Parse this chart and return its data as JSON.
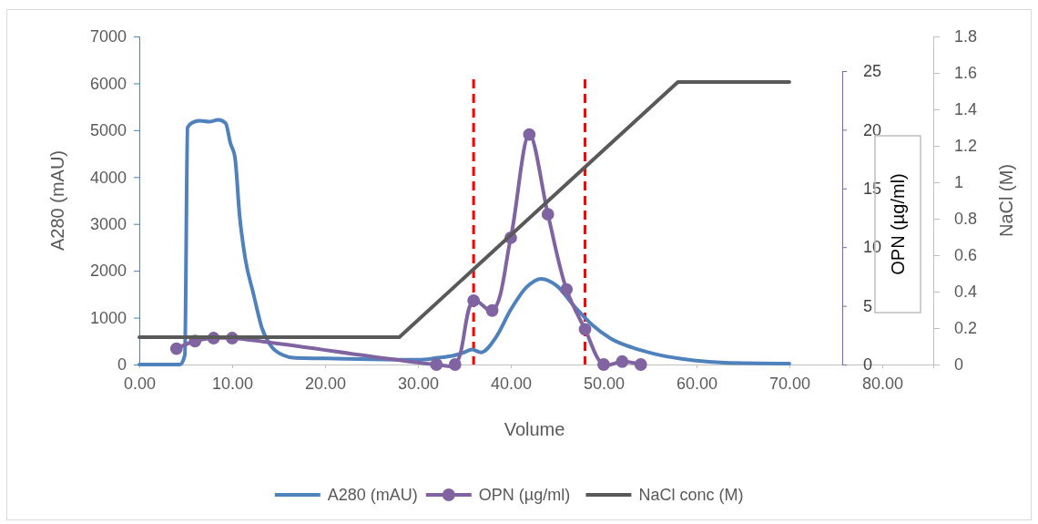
{
  "chart_data": {
    "type": "line",
    "xlabel": "Volume",
    "ylabel": "A280 (mAU)",
    "y2label": "NaCl (M)",
    "y3label": "OPN (µg/ml)",
    "xlim": [
      0,
      85.5
    ],
    "xticks": [
      {
        "value": 0,
        "label": "0.00"
      },
      {
        "value": 10,
        "label": "10.00"
      },
      {
        "value": 20,
        "label": "20.00"
      },
      {
        "value": 30,
        "label": "30.00"
      },
      {
        "value": 40,
        "label": "40.00"
      },
      {
        "value": 50,
        "label": "50.00"
      },
      {
        "value": 60,
        "label": "60.00"
      },
      {
        "value": 70,
        "label": "70.00"
      },
      {
        "value": 80,
        "label": "80.00"
      }
    ],
    "ylim": [
      0,
      7000
    ],
    "yticks": [
      0,
      1000,
      2000,
      3000,
      4000,
      5000,
      6000,
      7000
    ],
    "y2lim": [
      0,
      1.8
    ],
    "y2ticks": [
      0,
      0.2,
      0.4,
      0.6,
      0.8,
      1,
      1.2,
      1.4,
      1.6,
      1.8
    ],
    "y3lim": [
      0,
      25
    ],
    "y3ticks": [
      0,
      5,
      10,
      15,
      20,
      25
    ],
    "legend": "bottom",
    "series": [
      {
        "name": "A280 (mAU)",
        "color": "#4f81bd",
        "marker": "none",
        "x": [
          0,
          4.4,
          4.9,
          5.2,
          5.7,
          6.5,
          7.5,
          8.5,
          9.3,
          9.8,
          10.3,
          10.8,
          11.4,
          12.3,
          13.2,
          14.2,
          15.5,
          16.8,
          20,
          25,
          30,
          32,
          34,
          35,
          35.8,
          36.8,
          38.4,
          40,
          41.7,
          43.3,
          44.9,
          46.9,
          48.8,
          50.8,
          53.1,
          55.4,
          58.4,
          63,
          70
        ],
        "values": [
          0,
          0,
          200,
          5060,
          5160,
          5200,
          5180,
          5220,
          5150,
          4730,
          4420,
          3180,
          2270,
          1500,
          780,
          390,
          200,
          140,
          130,
          110,
          100,
          140,
          200,
          260,
          320,
          260,
          580,
          1170,
          1650,
          1830,
          1690,
          1230,
          840,
          550,
          360,
          230,
          120,
          40,
          20
        ]
      },
      {
        "name": "OPN (µg/ml)",
        "color": "#8064a2",
        "marker": "circle",
        "axis": "y3",
        "x": [
          4,
          6,
          8,
          10,
          32,
          34,
          36,
          38,
          40,
          42,
          44,
          46,
          48,
          50,
          52,
          54
        ],
        "values": [
          1.35,
          2.0,
          2.25,
          2.25,
          0,
          0,
          5.45,
          4.6,
          10.8,
          19.6,
          12.8,
          6.4,
          3.0,
          0,
          0.25,
          0
        ]
      },
      {
        "name": "NaCl conc (M)",
        "color": "#595959",
        "marker": "none",
        "axis": "y2",
        "x": [
          0,
          28,
          58,
          70
        ],
        "values": [
          0.15,
          0.15,
          1.55,
          1.55
        ]
      }
    ],
    "ref_lines": [
      {
        "axis": "x",
        "value": 36,
        "color": "#ff0000",
        "line_style": "dashed"
      },
      {
        "axis": "x",
        "value": 48,
        "color": "#ff0000",
        "line_style": "dashed"
      }
    ]
  }
}
